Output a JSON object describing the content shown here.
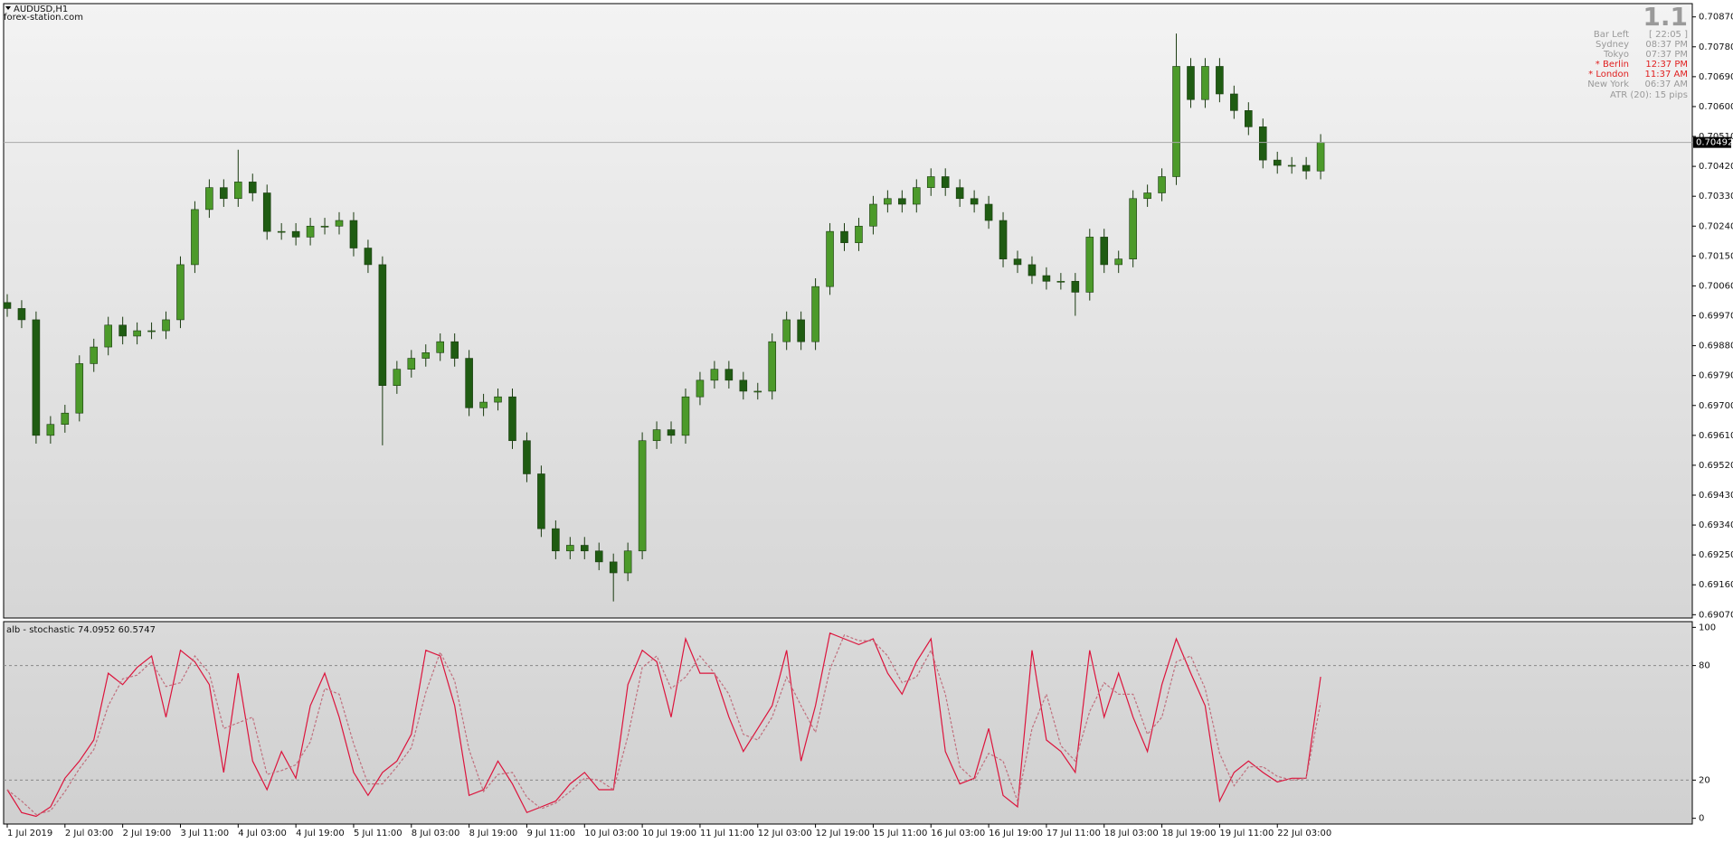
{
  "chart_data": [
    {
      "type": "candlestick",
      "title": "AUDUSD,H1",
      "subtitle": "forex-station.com",
      "x": [
        0,
        4,
        8,
        12,
        16,
        20,
        24,
        28,
        32,
        36,
        40,
        44,
        48,
        52,
        56,
        60,
        64,
        68,
        72,
        76,
        80,
        84,
        88,
        92,
        96,
        100,
        104,
        108,
        112,
        116,
        120,
        124,
        128,
        132,
        136,
        140,
        144,
        148,
        152,
        156,
        160,
        164,
        168,
        172,
        176,
        180,
        184,
        188,
        192,
        196,
        200,
        204,
        208,
        212,
        216,
        220,
        224,
        228,
        232,
        236,
        240,
        244,
        248,
        252,
        256,
        260,
        264,
        268,
        272,
        276,
        280,
        284,
        288,
        292,
        296,
        300,
        304,
        308,
        312,
        316,
        320,
        324,
        328,
        332,
        336,
        340,
        344,
        348,
        352,
        356,
        360,
        364
      ],
      "open": [
        0.7001,
        0.69992,
        0.69958,
        0.6961,
        0.69643,
        0.69677,
        0.69826,
        0.69876,
        0.69942,
        0.69909,
        0.69925,
        0.69925,
        0.69958,
        0.70124,
        0.7029,
        0.70356,
        0.70323,
        0.70373,
        0.7034,
        0.70224,
        0.70224,
        0.70207,
        0.7024,
        0.7024,
        0.70257,
        0.70174,
        0.70124,
        0.6976,
        0.69809,
        0.69842,
        0.69859,
        0.69892,
        0.69842,
        0.69693,
        0.6971,
        0.69726,
        0.69594,
        0.69494,
        0.69329,
        0.69262,
        0.69279,
        0.69262,
        0.69229,
        0.69196,
        0.69262,
        0.69594,
        0.69627,
        0.6961,
        0.69726,
        0.69776,
        0.69809,
        0.69776,
        0.69743,
        0.69743,
        0.69892,
        0.69958,
        0.69892,
        0.70058,
        0.70224,
        0.7019,
        0.7024,
        0.70306,
        0.70323,
        0.70306,
        0.70356,
        0.70389,
        0.70356,
        0.70323,
        0.70306,
        0.70257,
        0.70141,
        0.70124,
        0.70091,
        0.70074,
        0.70074,
        0.70041,
        0.70207,
        0.70124,
        0.70141,
        0.70323,
        0.7034,
        0.70389,
        0.70721,
        0.70621,
        0.70721,
        0.70638,
        0.70588,
        0.70539,
        0.70439,
        0.70423,
        0.70423,
        0.70406
      ],
      "high": [
        0.70035,
        0.70017,
        0.69983,
        0.69668,
        0.69702,
        0.69851,
        0.69901,
        0.69967,
        0.69967,
        0.6995,
        0.6995,
        0.69983,
        0.70149,
        0.70315,
        0.70381,
        0.70381,
        0.7047,
        0.70398,
        0.70365,
        0.70249,
        0.70249,
        0.70265,
        0.70265,
        0.70282,
        0.70282,
        0.70199,
        0.70149,
        0.69834,
        0.69867,
        0.69884,
        0.69917,
        0.69917,
        0.69867,
        0.69735,
        0.69751,
        0.69751,
        0.69619,
        0.69519,
        0.69354,
        0.69304,
        0.69304,
        0.69287,
        0.69254,
        0.69287,
        0.69619,
        0.69652,
        0.69652,
        0.69751,
        0.69801,
        0.69834,
        0.69834,
        0.69801,
        0.69768,
        0.69917,
        0.69983,
        0.69983,
        0.70083,
        0.70249,
        0.70249,
        0.70265,
        0.70331,
        0.70348,
        0.70348,
        0.70381,
        0.70414,
        0.70414,
        0.70381,
        0.70348,
        0.70331,
        0.70282,
        0.70166,
        0.70149,
        0.70116,
        0.70099,
        0.70099,
        0.70232,
        0.70232,
        0.70166,
        0.70348,
        0.70365,
        0.70414,
        0.7082,
        0.70746,
        0.70746,
        0.70746,
        0.70663,
        0.70613,
        0.70564,
        0.70464,
        0.70448,
        0.70448,
        0.70517
      ],
      "low": [
        0.69967,
        0.69933,
        0.69585,
        0.69585,
        0.69618,
        0.69652,
        0.69801,
        0.69851,
        0.69884,
        0.69884,
        0.699,
        0.699,
        0.69933,
        0.70099,
        0.70265,
        0.70298,
        0.70298,
        0.70315,
        0.70199,
        0.70199,
        0.70182,
        0.70182,
        0.70215,
        0.70215,
        0.70149,
        0.70099,
        0.6958,
        0.69735,
        0.69784,
        0.69817,
        0.69834,
        0.69817,
        0.69668,
        0.69668,
        0.69685,
        0.69569,
        0.69469,
        0.69304,
        0.69237,
        0.69237,
        0.69237,
        0.69204,
        0.6911,
        0.69171,
        0.69237,
        0.69569,
        0.69585,
        0.69585,
        0.69701,
        0.69751,
        0.69751,
        0.69718,
        0.69718,
        0.69718,
        0.69867,
        0.69867,
        0.69867,
        0.70033,
        0.70165,
        0.70165,
        0.70215,
        0.70281,
        0.70281,
        0.70281,
        0.70331,
        0.70331,
        0.70298,
        0.70281,
        0.70232,
        0.70116,
        0.70099,
        0.70066,
        0.70049,
        0.70049,
        0.6997,
        0.70016,
        0.70099,
        0.70099,
        0.70116,
        0.70298,
        0.70315,
        0.70364,
        0.70596,
        0.70596,
        0.70613,
        0.70563,
        0.70514,
        0.70414,
        0.70398,
        0.70398,
        0.70381,
        0.70381
      ],
      "close": [
        0.69992,
        0.69958,
        0.6961,
        0.69643,
        0.69677,
        0.69826,
        0.69876,
        0.69942,
        0.69909,
        0.69925,
        0.69925,
        0.69958,
        0.70124,
        0.7029,
        0.70356,
        0.70323,
        0.70373,
        0.7034,
        0.70224,
        0.70224,
        0.70207,
        0.7024,
        0.7024,
        0.70257,
        0.70174,
        0.70124,
        0.6976,
        0.69809,
        0.69842,
        0.69859,
        0.69892,
        0.69842,
        0.69693,
        0.6971,
        0.69726,
        0.69594,
        0.69494,
        0.69329,
        0.69262,
        0.69279,
        0.69262,
        0.69229,
        0.69196,
        0.69262,
        0.69594,
        0.69627,
        0.6961,
        0.69726,
        0.69776,
        0.69809,
        0.69776,
        0.69743,
        0.69743,
        0.69892,
        0.69958,
        0.69892,
        0.70058,
        0.70224,
        0.7019,
        0.7024,
        0.70306,
        0.70323,
        0.70306,
        0.70356,
        0.70389,
        0.70356,
        0.70323,
        0.70306,
        0.70257,
        0.70141,
        0.70124,
        0.70091,
        0.70074,
        0.70074,
        0.70041,
        0.70207,
        0.70124,
        0.70141,
        0.70323,
        0.7034,
        0.70389,
        0.70721,
        0.70621,
        0.70721,
        0.70638,
        0.70588,
        0.70539,
        0.70439,
        0.70423,
        0.70423,
        0.70406,
        0.70492
      ],
      "bull_color": "#4c9a2a",
      "bear_color": "#1f5c12",
      "wick_color": "#1a3a10",
      "current_price": 0.70492,
      "xlim": [
        -1,
        467
      ],
      "ylim": [
        0.6906,
        0.7091
      ],
      "yticks": [
        {
          "value": 0.7087,
          "label": "0.70870"
        },
        {
          "value": 0.7078,
          "label": "0.70780"
        },
        {
          "value": 0.7069,
          "label": "0.70690"
        },
        {
          "value": 0.706,
          "label": "0.70600"
        },
        {
          "value": 0.7051,
          "label": "0.70510"
        },
        {
          "value": 0.7042,
          "label": "0.70420"
        },
        {
          "value": 0.7033,
          "label": "0.70330"
        },
        {
          "value": 0.7024,
          "label": "0.70240"
        },
        {
          "value": 0.7015,
          "label": "0.70150"
        },
        {
          "value": 0.7006,
          "label": "0.70060"
        },
        {
          "value": 0.6997,
          "label": "0.69970"
        },
        {
          "value": 0.6988,
          "label": "0.69880"
        },
        {
          "value": 0.6979,
          "label": "0.69790"
        },
        {
          "value": 0.697,
          "label": "0.69700"
        },
        {
          "value": 0.6961,
          "label": "0.69610"
        },
        {
          "value": 0.6952,
          "label": "0.69520"
        },
        {
          "value": 0.6943,
          "label": "0.69430"
        },
        {
          "value": 0.6934,
          "label": "0.69340"
        },
        {
          "value": 0.6925,
          "label": "0.69250"
        },
        {
          "value": 0.6916,
          "label": "0.69160"
        },
        {
          "value": 0.6907,
          "label": "0.69070"
        }
      ]
    },
    {
      "type": "line",
      "title": "alb - stochastic",
      "x": [
        0,
        4,
        8,
        12,
        16,
        20,
        24,
        28,
        32,
        36,
        40,
        44,
        48,
        52,
        56,
        60,
        64,
        68,
        72,
        76,
        80,
        84,
        88,
        92,
        96,
        100,
        104,
        108,
        112,
        116,
        120,
        124,
        128,
        132,
        136,
        140,
        144,
        148,
        152,
        156,
        160,
        164,
        168,
        172,
        176,
        180,
        184,
        188,
        192,
        196,
        200,
        204,
        208,
        212,
        216,
        220,
        224,
        228,
        232,
        236,
        240,
        244,
        248,
        252,
        256,
        260,
        264,
        268,
        272,
        276,
        280,
        284,
        288,
        292,
        296,
        300,
        304,
        308,
        312,
        316,
        320,
        324,
        328,
        332,
        336,
        340,
        344,
        348,
        352,
        356,
        360,
        364
      ],
      "series": [
        {
          "color": "#dc143c",
          "values": [
            15,
            3,
            1,
            6,
            21,
            30,
            41,
            76,
            70,
            79,
            85,
            53,
            88,
            82,
            70,
            24,
            76,
            30,
            15,
            35,
            21,
            59,
            76,
            53,
            24,
            12,
            24,
            30,
            44,
            88,
            85,
            59,
            12,
            15,
            30,
            18,
            3,
            6,
            9,
            18,
            24,
            15,
            15,
            70,
            88,
            82,
            53,
            94,
            76,
            76,
            53,
            35,
            47,
            59,
            88,
            30,
            59,
            97,
            94,
            91,
            94,
            76,
            65,
            82,
            94,
            35,
            18,
            21,
            47,
            12,
            6,
            88,
            41,
            35,
            24,
            88,
            53,
            76,
            53,
            35,
            70,
            94,
            76,
            59,
            9,
            24,
            30,
            24,
            19,
            21,
            21,
            74.0952
          ]
        },
        {
          "color": "#c0707e",
          "dashed": true,
          "values": [
            15,
            9,
            2,
            4,
            14,
            26,
            36,
            59,
            73,
            75,
            82,
            69,
            71,
            85,
            76,
            47,
            50,
            53,
            23,
            25,
            28,
            40,
            68,
            65,
            39,
            18,
            18,
            27,
            37,
            66,
            87,
            72,
            36,
            14,
            23,
            24,
            11,
            5,
            8,
            14,
            21,
            20,
            15,
            43,
            79,
            85,
            68,
            74,
            85,
            76,
            65,
            44,
            41,
            53,
            74,
            59,
            45,
            78,
            96,
            93,
            93,
            85,
            71,
            74,
            88,
            65,
            27,
            20,
            34,
            30,
            9,
            47,
            65,
            38,
            30,
            56,
            71,
            65,
            65,
            44,
            53,
            82,
            85,
            68,
            34,
            17,
            27,
            27,
            22,
            20,
            21,
            60.5747
          ]
        }
      ],
      "levels": [
        80,
        20
      ],
      "xlim": [
        -1,
        467
      ],
      "ylim": [
        -3,
        103
      ],
      "yticks": [
        100,
        80,
        20,
        0
      ],
      "xticks": [
        {
          "value": 0,
          "label": "1 Jul 2019"
        },
        {
          "value": 16,
          "label": "2 Jul 03:00"
        },
        {
          "value": 32,
          "label": "2 Jul 19:00"
        },
        {
          "value": 48,
          "label": "3 Jul 11:00"
        },
        {
          "value": 64,
          "label": "4 Jul 03:00"
        },
        {
          "value": 80,
          "label": "4 Jul 19:00"
        },
        {
          "value": 96,
          "label": "5 Jul 11:00"
        },
        {
          "value": 112,
          "label": "8 Jul 03:00"
        },
        {
          "value": 128,
          "label": "8 Jul 19:00"
        },
        {
          "value": 144,
          "label": "9 Jul 11:00"
        },
        {
          "value": 160,
          "label": "10 Jul 03:00"
        },
        {
          "value": 176,
          "label": "10 Jul 19:00"
        },
        {
          "value": 192,
          "label": "11 Jul 11:00"
        },
        {
          "value": 208,
          "label": "12 Jul 03:00"
        },
        {
          "value": 224,
          "label": "12 Jul 19:00"
        },
        {
          "value": 240,
          "label": "15 Jul 11:00"
        },
        {
          "value": 256,
          "label": "16 Jul 03:00"
        },
        {
          "value": 272,
          "label": "16 Jul 19:00"
        },
        {
          "value": 288,
          "label": "17 Jul 11:00"
        },
        {
          "value": 304,
          "label": "18 Jul 03:00"
        },
        {
          "value": 320,
          "label": "18 Jul 19:00"
        },
        {
          "value": 336,
          "label": "19 Jul 11:00"
        },
        {
          "value": 352,
          "label": "22 Jul 03:00"
        }
      ]
    }
  ],
  "info_panel": {
    "big": "1.1",
    "footer": "ATR (20): 15 pips",
    "rows": [
      {
        "label": "Bar Left",
        "value": "[ 22:05 ]",
        "color": "#999999"
      },
      {
        "label": "Sydney",
        "value": "08:37 PM",
        "color": "#999999"
      },
      {
        "label": "Tokyo",
        "value": "07:37 PM",
        "color": "#999999"
      },
      {
        "label": "* Berlin",
        "value": "12:37 PM",
        "color": "#e02020"
      },
      {
        "label": "* London",
        "value": "11:37 AM",
        "color": "#e02020"
      },
      {
        "label": "New York",
        "value": "06:37 AM",
        "color": "#999999"
      }
    ]
  }
}
